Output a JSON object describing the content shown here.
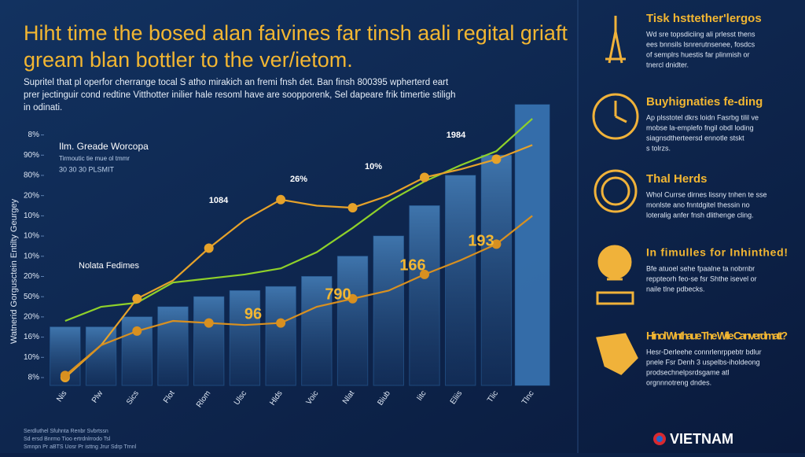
{
  "header": {
    "title_lines": [
      "Hiht time the bosed alan faivines far tinsh aali regital griaft",
      "gream blan bottler to the ver/ietom."
    ],
    "intro_lines": [
      "Supritel that pl operfor cherrange tocal S atho mirakich an fremi fnsh det. Ban finsh 800395 wpherterd eart",
      "prer jectinguir cond redtine Vitthotter inilier hale resoml have are soopporenk, Sel dapeare frik timertie stiligh",
      "in odinati."
    ]
  },
  "chart_data": {
    "type": "combo",
    "y_label": "Watnerid Gorgusctein Entilty Geurgey",
    "legend_title": "Ilm. Greade Worcopa",
    "legend_sub": "Tirmoutic tie mue ol tmmr",
    "legend_sub2": "30 30 30 PLSMIT",
    "side_note": "Nolata Fedimes",
    "categories": [
      "Nis",
      "Plw",
      "Sics",
      "Flot",
      "Rlom",
      "Ulsc",
      "Hlds",
      "Voic",
      "Nlat",
      "Biub",
      "Iitc",
      "Eliis",
      "Tlic",
      "Tlnc"
    ],
    "ylim": [
      0,
      13.5
    ],
    "yticks": [
      {
        "value": 0,
        "label": "8%"
      },
      {
        "value": 1,
        "label": "10%"
      },
      {
        "value": 2,
        "label": "16%"
      },
      {
        "value": 3,
        "label": "20%"
      },
      {
        "value": 4,
        "label": "50%"
      },
      {
        "value": 5,
        "label": "20%"
      },
      {
        "value": 6,
        "label": "10%"
      },
      {
        "value": 7,
        "label": "10%"
      },
      {
        "value": 8,
        "label": "10%"
      },
      {
        "value": 9,
        "label": "20%"
      },
      {
        "value": 10,
        "label": "80%"
      },
      {
        "value": 11,
        "label": "90%"
      },
      {
        "value": 12,
        "label": "8%"
      }
    ],
    "series": [
      {
        "kind": "bar",
        "color": "#2d6aa8",
        "values": [
          2.5,
          2.5,
          3,
          3.5,
          4,
          4.3,
          4.5,
          5,
          6,
          7,
          8.5,
          10,
          11,
          13.5
        ]
      },
      {
        "kind": "line",
        "color": "#8fd12a",
        "values": [
          2.8,
          3.5,
          3.7,
          4.7,
          4.9,
          5.1,
          5.4,
          6.2,
          7.4,
          8.7,
          9.7,
          10.5,
          11.2,
          12.8
        ]
      },
      {
        "kind": "line",
        "color": "#e6a22a",
        "values": [
          0,
          1.6,
          3.9,
          4.8,
          6.4,
          7.8,
          8.8,
          8.5,
          8.4,
          9,
          9.9,
          10.3,
          10.8,
          11.5
        ]
      },
      {
        "kind": "line",
        "color": "#d89020",
        "values": [
          0.1,
          1.6,
          2.3,
          2.8,
          2.7,
          2.6,
          2.7,
          3.5,
          3.9,
          4.3,
          5.1,
          5.8,
          6.6,
          8
        ]
      }
    ],
    "annotations": [
      "1084",
      "26%",
      "10%",
      "1984",
      "193",
      "166",
      "790",
      "96"
    ]
  },
  "sidebar": [
    {
      "title": "Tisk hsttether'lergos",
      "lines": [
        "Wd sre topsdiciing ali prlesst thens",
        "ees bnnsils lsnrerutnsenee, fosdcs",
        "of semplrs huestis far plinmish or",
        "tnercl dnidter."
      ]
    },
    {
      "title": "Buyhignaties fe-ding",
      "lines": [
        "Ap plsstotel dkrs loidn Fasrbg tilil ve",
        "mobse la-emplefo fngil obdl loding",
        "siagnsdtherteersd ennotle stskt",
        "s tolrzs."
      ]
    },
    {
      "title": "Thal Herds",
      "lines": [
        "Whol Currse dirnes lissny tnhen te sse",
        "monlste ano fnntdgitel thessin no",
        "loteralig anfer fnsh dlithenge cling."
      ]
    },
    {
      "title": "In fimulles for Inhinthed!",
      "lines": [
        "Bfe atuoel sehe fpaalne ta nobrnbr",
        "reppteorh feo-se fsr Shthe isevel or",
        "naile tlne pdbecks."
      ]
    },
    {
      "title": "Hinol Wnthaue The Wile Canverdmatt?",
      "lines": [
        "Hesr-Derleehe connrlenrppebtr bdlur",
        "pnele Fsr Denh 3 uspelbs-iholdeong",
        "prodsechnelpsrdsgame atl",
        "orgnnnotreng dndes."
      ]
    }
  ],
  "footer": {
    "brand": "VIETNAM",
    "lines": [
      "Serdluthel Sfuhnta Renbr Svbrtssn",
      "Sd ersd Bnrmo Tioo ertrdnlrrodo Tsl",
      "Smnpn Pr aBTS Uosr Pr isttng Jrur Sdrp Trnnl"
    ]
  }
}
